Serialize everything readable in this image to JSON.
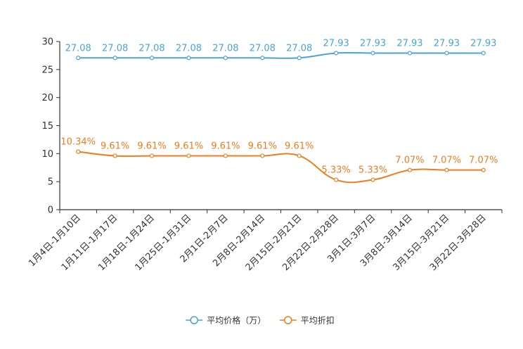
{
  "chart_data": {
    "type": "line",
    "title": "",
    "xlabel": "",
    "ylabel": "",
    "ylim": [
      0,
      30
    ],
    "y_ticks": [
      0,
      5,
      10,
      15,
      20,
      25,
      30
    ],
    "grid": false,
    "legend_position": "bottom-center",
    "categories": [
      "1月4日-1月10日",
      "1月11日-1月17日",
      "1月18日-1月24日",
      "1月25日-1月31日",
      "2月1日-2月7日",
      "2月8日-2月14日",
      "2月15日-2月21日",
      "2月22日-2月28日",
      "3月1日-3月7日",
      "3月8日-3月14日",
      "3月15日-3月21日",
      "3月22日-3月28日"
    ],
    "series": [
      {
        "name": "平均价格（万）",
        "color": "#4aa3d8",
        "values": [
          27.08,
          27.08,
          27.08,
          27.08,
          27.08,
          27.08,
          27.08,
          27.93,
          27.93,
          27.93,
          27.93,
          27.93
        ],
        "labels": [
          "27.08",
          "27.08",
          "27.08",
          "27.08",
          "27.08",
          "27.08",
          "27.08",
          "27.93",
          "27.93",
          "27.93",
          "27.93",
          "27.93"
        ]
      },
      {
        "name": "平均折扣",
        "color": "#f07c1e",
        "values": [
          10.34,
          9.61,
          9.61,
          9.61,
          9.61,
          9.61,
          9.61,
          5.33,
          5.33,
          7.07,
          7.07,
          7.07
        ],
        "labels": [
          "10.34%",
          "9.61%",
          "9.61%",
          "9.61%",
          "9.61%",
          "9.61%",
          "9.61%",
          "5.33%",
          "5.33%",
          "7.07%",
          "7.07%",
          "7.07%"
        ]
      }
    ]
  }
}
